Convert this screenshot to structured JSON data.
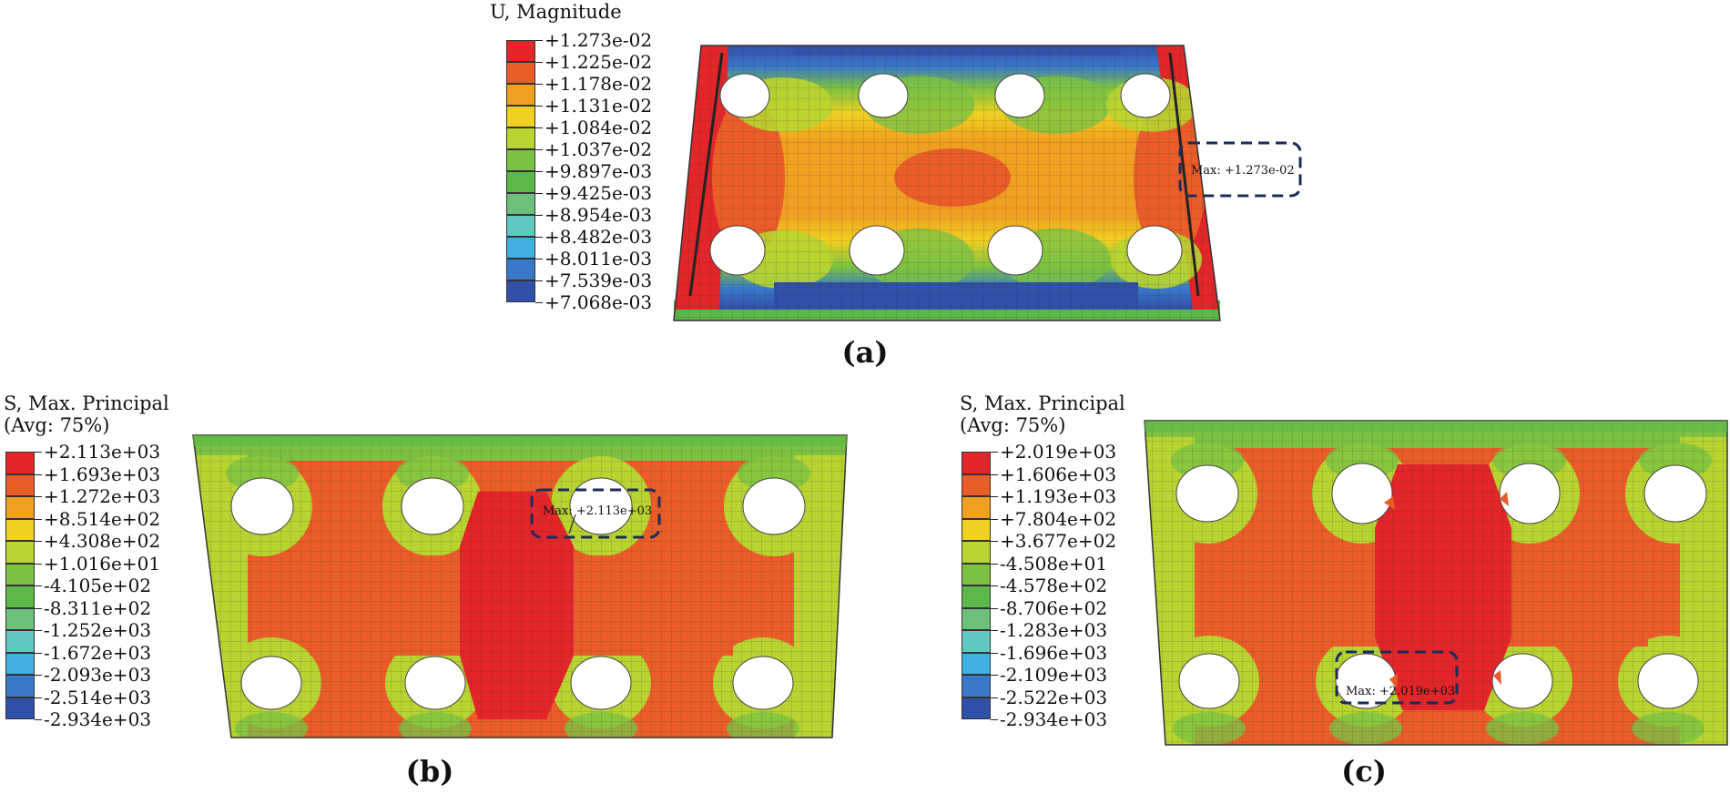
{
  "panel_a": {
    "legend_title": "U, Magnitude",
    "legend_values": [
      "+1.273e-02",
      "+1.225e-02",
      "+1.178e-02",
      "+1.131e-02",
      "+1.084e-02",
      "+1.037e-02",
      "+9.897e-03",
      "+9.425e-03",
      "+8.954e-03",
      "+8.482e-03",
      "+8.011e-03",
      "+7.539e-03",
      "+7.068e-03"
    ],
    "max_label": "Max: +1.273e-02",
    "caption": "(a)"
  },
  "panel_b": {
    "legend_title_1": "S, Max. Principal",
    "legend_title_2": "(Avg: 75%)",
    "legend_values": [
      "+2.113e+03",
      "+1.693e+03",
      "+1.272e+03",
      "+8.514e+02",
      "+4.308e+02",
      "+1.016e+01",
      "-4.105e+02",
      "-8.311e+02",
      "-1.252e+03",
      "-1.672e+03",
      "-2.093e+03",
      "-2.514e+03",
      "-2.934e+03"
    ],
    "max_label": "Max: +2.113e+03",
    "caption": "(b)"
  },
  "panel_c": {
    "legend_title_1": "S, Max. Principal",
    "legend_title_2": "(Avg: 75%)",
    "legend_values": [
      "+2.019e+03",
      "+1.606e+03",
      "+1.193e+03",
      "+7.804e+02",
      "+3.677e+02",
      "-4.508e+01",
      "-4.578e+02",
      "-8.706e+02",
      "-1.283e+03",
      "-1.696e+03",
      "-2.109e+03",
      "-2.522e+03",
      "-2.934e+03"
    ],
    "max_label": "Max: +2.019e+03",
    "caption": "(c)"
  },
  "colors": {
    "contour_scale": [
      "#e3262a",
      "#ea5c28",
      "#f0a020",
      "#f0d020",
      "#b8d430",
      "#7cc242",
      "#5cb848",
      "#6cc07a",
      "#60c8c0",
      "#40b0e0",
      "#3a78c8",
      "#3150a8"
    ],
    "max_box": "#1c2b5a"
  }
}
